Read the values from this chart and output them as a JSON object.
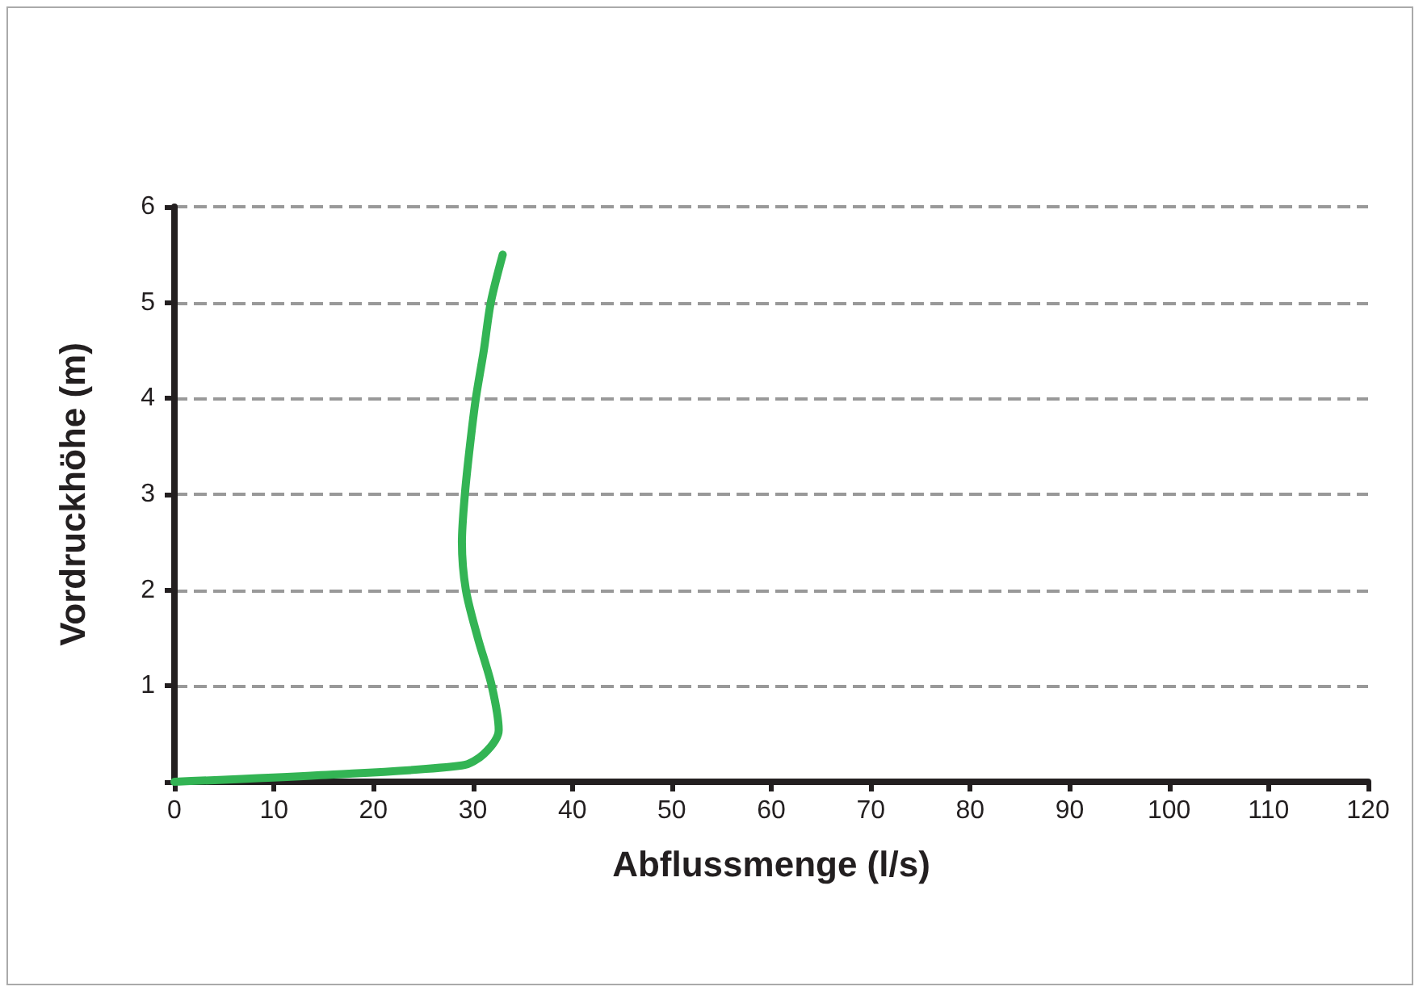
{
  "chart_data": {
    "type": "line",
    "xlabel": "Abflussmenge (l/s)",
    "ylabel": "Vordruckhöhe (m)",
    "series": [
      {
        "color": "#33b454",
        "x": [
          0,
          14.7,
          28.9,
          31.1,
          32.6,
          31.9,
          30.5,
          29.3,
          28.9,
          29.2,
          29.7,
          30.3,
          31.1,
          31.8,
          33.0
        ],
        "values": [
          0,
          0.07,
          0.17,
          0.29,
          0.54,
          1.0,
          1.5,
          2.0,
          2.5,
          3.0,
          3.5,
          4.0,
          4.5,
          5.0,
          5.5
        ]
      }
    ],
    "xlim": [
      0,
      120
    ],
    "xticks": [
      0,
      10,
      20,
      30,
      40,
      50,
      60,
      70,
      80,
      90,
      100,
      110,
      120
    ],
    "ylim": [
      0,
      6
    ],
    "yticks": [
      {
        "value": 0,
        "label": null
      },
      1,
      2,
      3,
      4,
      5,
      6
    ],
    "grid": "y",
    "marker": "none",
    "line_style": "solid"
  }
}
